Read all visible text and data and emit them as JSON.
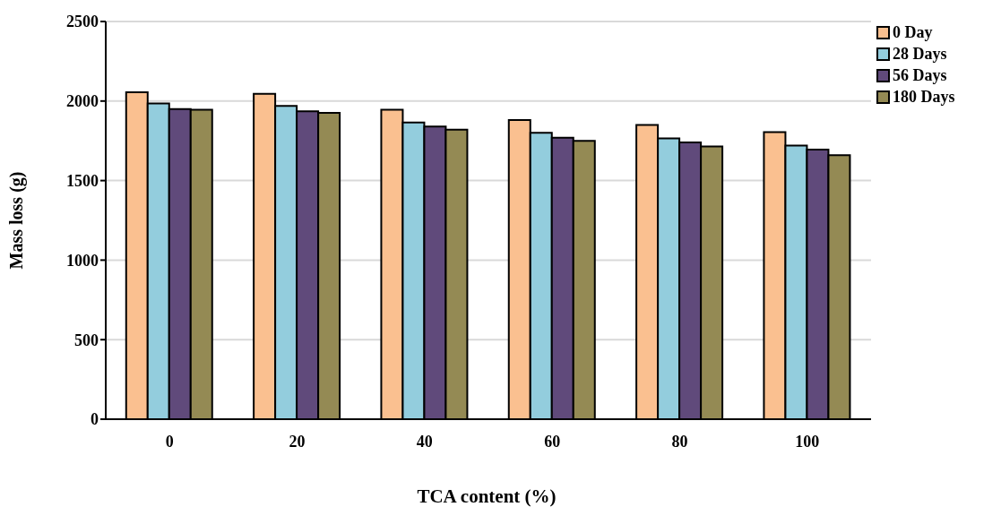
{
  "chart_data": {
    "type": "bar",
    "xlabel": "TCA content (%)",
    "ylabel": "Mass loss (g)",
    "categories": [
      "0",
      "20",
      "40",
      "60",
      "80",
      "100"
    ],
    "series": [
      {
        "name": "0 Day",
        "color": "#fac090",
        "values": [
          2055,
          2045,
          1945,
          1880,
          1850,
          1805
        ]
      },
      {
        "name": "28 Days",
        "color": "#93cddd",
        "values": [
          1985,
          1970,
          1865,
          1800,
          1765,
          1720
        ]
      },
      {
        "name": "56 Days",
        "color": "#604a7b",
        "values": [
          1950,
          1935,
          1840,
          1770,
          1740,
          1695
        ]
      },
      {
        "name": "180 Days",
        "color": "#948a54",
        "values": [
          1945,
          1925,
          1820,
          1750,
          1715,
          1660
        ]
      }
    ],
    "ylim": [
      0,
      2500
    ],
    "yticks": [
      0,
      500,
      1000,
      1500,
      2000,
      2500
    ],
    "grid": "y",
    "legend": "right"
  }
}
